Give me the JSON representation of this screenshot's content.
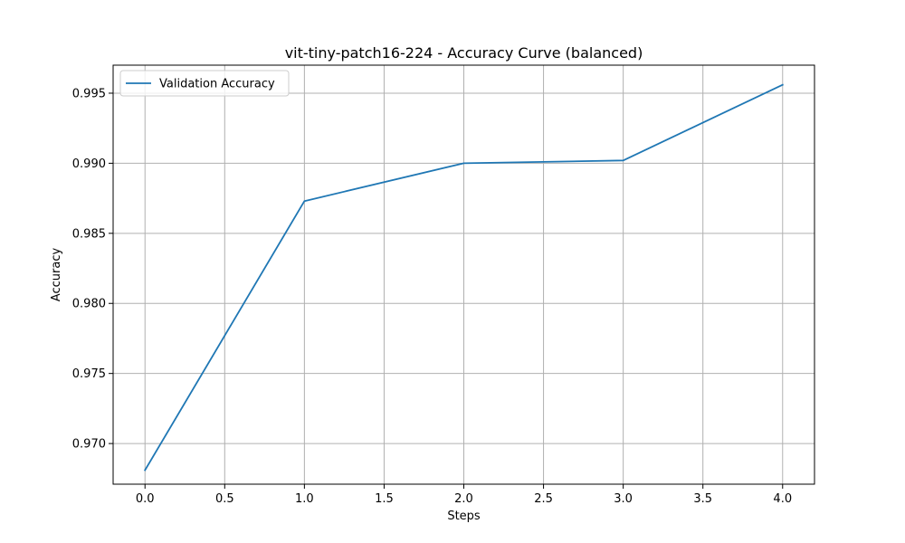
{
  "chart_data": {
    "type": "line",
    "title": "vit-tiny-patch16-224 - Accuracy Curve (balanced)",
    "xlabel": "Steps",
    "ylabel": "Accuracy",
    "xlim": [
      -0.2,
      4.2
    ],
    "ylim": [
      0.9671,
      0.997
    ],
    "xticks": [
      0.0,
      0.5,
      1.0,
      1.5,
      2.0,
      2.5,
      3.0,
      3.5,
      4.0
    ],
    "xtick_labels": [
      "0.0",
      "0.5",
      "1.0",
      "1.5",
      "2.0",
      "2.5",
      "3.0",
      "3.5",
      "4.0"
    ],
    "yticks": [
      0.97,
      0.975,
      0.98,
      0.985,
      0.99,
      0.995
    ],
    "ytick_labels": [
      "0.970",
      "0.975",
      "0.980",
      "0.985",
      "0.990",
      "0.995"
    ],
    "grid": true,
    "legend_position": "top-left",
    "series": [
      {
        "name": "Validation Accuracy",
        "color": "#1f77b4",
        "x": [
          0,
          1,
          2,
          3,
          4
        ],
        "y": [
          0.9681,
          0.9873,
          0.99,
          0.9902,
          0.9956
        ]
      }
    ]
  }
}
